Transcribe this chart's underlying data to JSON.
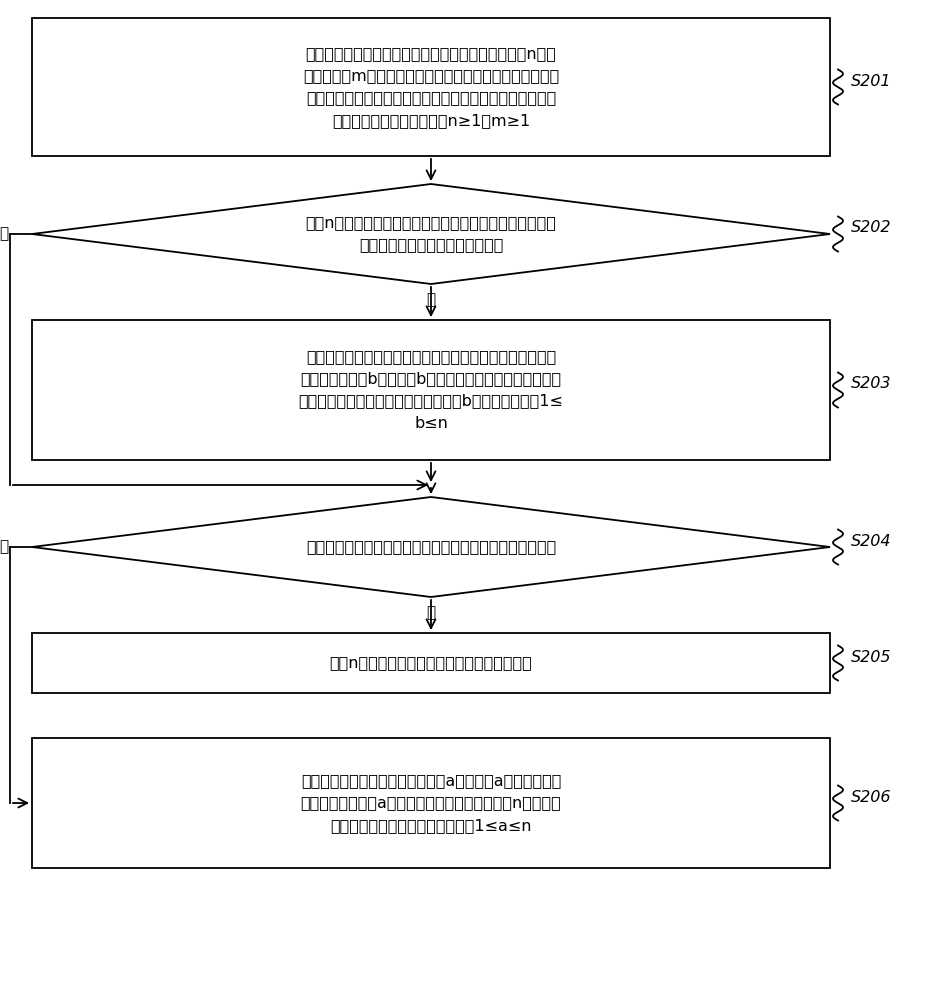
{
  "bg_color": "#ffffff",
  "box_color": "#ffffff",
  "box_edge_color": "#000000",
  "text_color": "#000000",
  "arrow_color": "#000000",
  "s201_text": "获取全站逆变器的运行数据，其中，全站逆变器包括n台样\n板逆变器和m台非样板逆变器，运行数据包括每台逆变器的\n运行日期、每个运行日期对应的日等效利用小时数和每个运\n行日期对应的逆变器状态，n≥1，m≥1",
  "s202_text": "判断n台样板逆变器中是否存在逆变器状态为异常、且持续\n时间不小于预设时间的样板逆变器",
  "s203_text": "存在逆变器状态为异常、且持续时间不小于预设时间的样板\n逆变器的数量为b，则使用b台非样板逆变器替换逆变器状态\n为异常、且持续时间不小于预设时间的b台样板逆变器，1≤\nb≤n",
  "s204_text": "根据全站逆变器的运行数据，判断是否需要更新样板逆变器",
  "s205_text": "根据n台样板逆变器，计算光伏电站的损失电量",
  "s206_text": "确定需要更新的样板逆变器的数量a，并使用a台非样板逆变\n器替换需要更新的a台样板逆变器，根据替换后的n台样板逆\n变器，计算光伏电站的损失电量，1≤a≤n",
  "label_s201": "S201",
  "label_s202": "S202",
  "label_s203": "S203",
  "label_s204": "S204",
  "label_s205": "S205",
  "label_s206": "S206",
  "yes": "是",
  "no": "否"
}
